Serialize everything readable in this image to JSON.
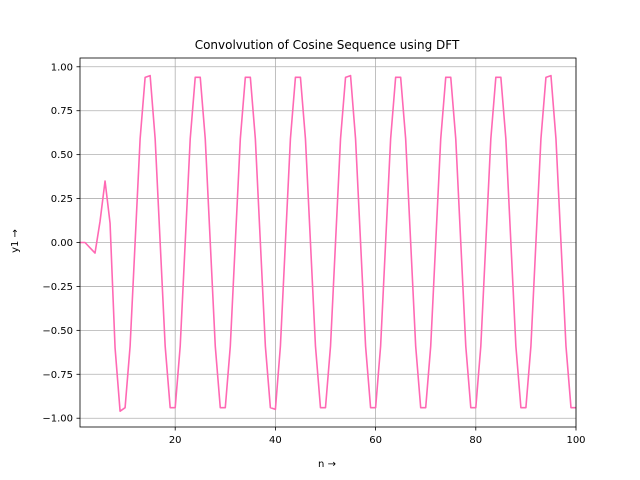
{
  "chart_data": {
    "type": "line",
    "title": "Convolvution of Cosine Sequence using DFT",
    "xlabel": "n →",
    "ylabel": "y1 →",
    "xlim": [
      1,
      100
    ],
    "ylim": [
      -1.05,
      1.05
    ],
    "xticks": [
      20,
      40,
      60,
      80,
      100
    ],
    "yticks": [
      -1.0,
      -0.75,
      -0.5,
      -0.25,
      0.0,
      0.25,
      0.5,
      0.75,
      1.0
    ],
    "ytick_labels": [
      "−1.00",
      "−0.75",
      "−0.50",
      "−0.25",
      "0.00",
      "0.25",
      "0.50",
      "0.75",
      "1.00"
    ],
    "xtick_labels": [
      "20",
      "40",
      "60",
      "80",
      "100"
    ],
    "grid": true,
    "series": [
      {
        "color": "#ff69b4",
        "x": [
          1,
          2,
          3,
          4,
          5,
          6,
          7,
          8,
          9,
          10,
          11,
          12,
          13,
          14,
          15,
          16,
          17,
          18,
          19,
          20,
          21,
          22,
          23,
          24,
          25,
          26,
          27,
          28,
          29,
          30,
          31,
          32,
          33,
          34,
          35,
          36,
          37,
          38,
          39,
          40,
          41,
          42,
          43,
          44,
          45,
          46,
          47,
          48,
          49,
          50,
          51,
          52,
          53,
          54,
          55,
          56,
          57,
          58,
          59,
          60,
          61,
          62,
          63,
          64,
          65,
          66,
          67,
          68,
          69,
          70,
          71,
          72,
          73,
          74,
          75,
          76,
          77,
          78,
          79,
          80,
          81,
          82,
          83,
          84,
          85,
          86,
          87,
          88,
          89,
          90,
          91,
          92,
          93,
          94,
          95,
          96,
          97,
          98,
          99,
          100
        ],
        "y": [
          0.0,
          0.0,
          -0.03,
          -0.06,
          0.12,
          0.35,
          0.11,
          -0.6,
          -0.96,
          -0.94,
          -0.59,
          0.0,
          0.59,
          0.94,
          0.95,
          0.59,
          0.0,
          -0.59,
          -0.94,
          -0.94,
          -0.59,
          0.0,
          0.59,
          0.94,
          0.94,
          0.59,
          0.0,
          -0.59,
          -0.94,
          -0.94,
          -0.59,
          0.0,
          0.59,
          0.94,
          0.94,
          0.59,
          0.0,
          -0.59,
          -0.94,
          -0.95,
          -0.59,
          0.0,
          0.59,
          0.94,
          0.94,
          0.59,
          0.0,
          -0.59,
          -0.94,
          -0.94,
          -0.59,
          0.0,
          0.59,
          0.94,
          0.95,
          0.59,
          0.0,
          -0.59,
          -0.94,
          -0.94,
          -0.59,
          0.0,
          0.59,
          0.94,
          0.94,
          0.59,
          0.0,
          -0.59,
          -0.94,
          -0.94,
          -0.59,
          0.0,
          0.59,
          0.94,
          0.94,
          0.59,
          0.0,
          -0.59,
          -0.94,
          -0.94,
          -0.59,
          0.0,
          0.59,
          0.94,
          0.94,
          0.59,
          0.0,
          -0.59,
          -0.94,
          -0.94,
          -0.59,
          0.0,
          0.59,
          0.94,
          0.95,
          0.59,
          0.0,
          -0.59,
          -0.94,
          -0.94
        ]
      }
    ]
  }
}
